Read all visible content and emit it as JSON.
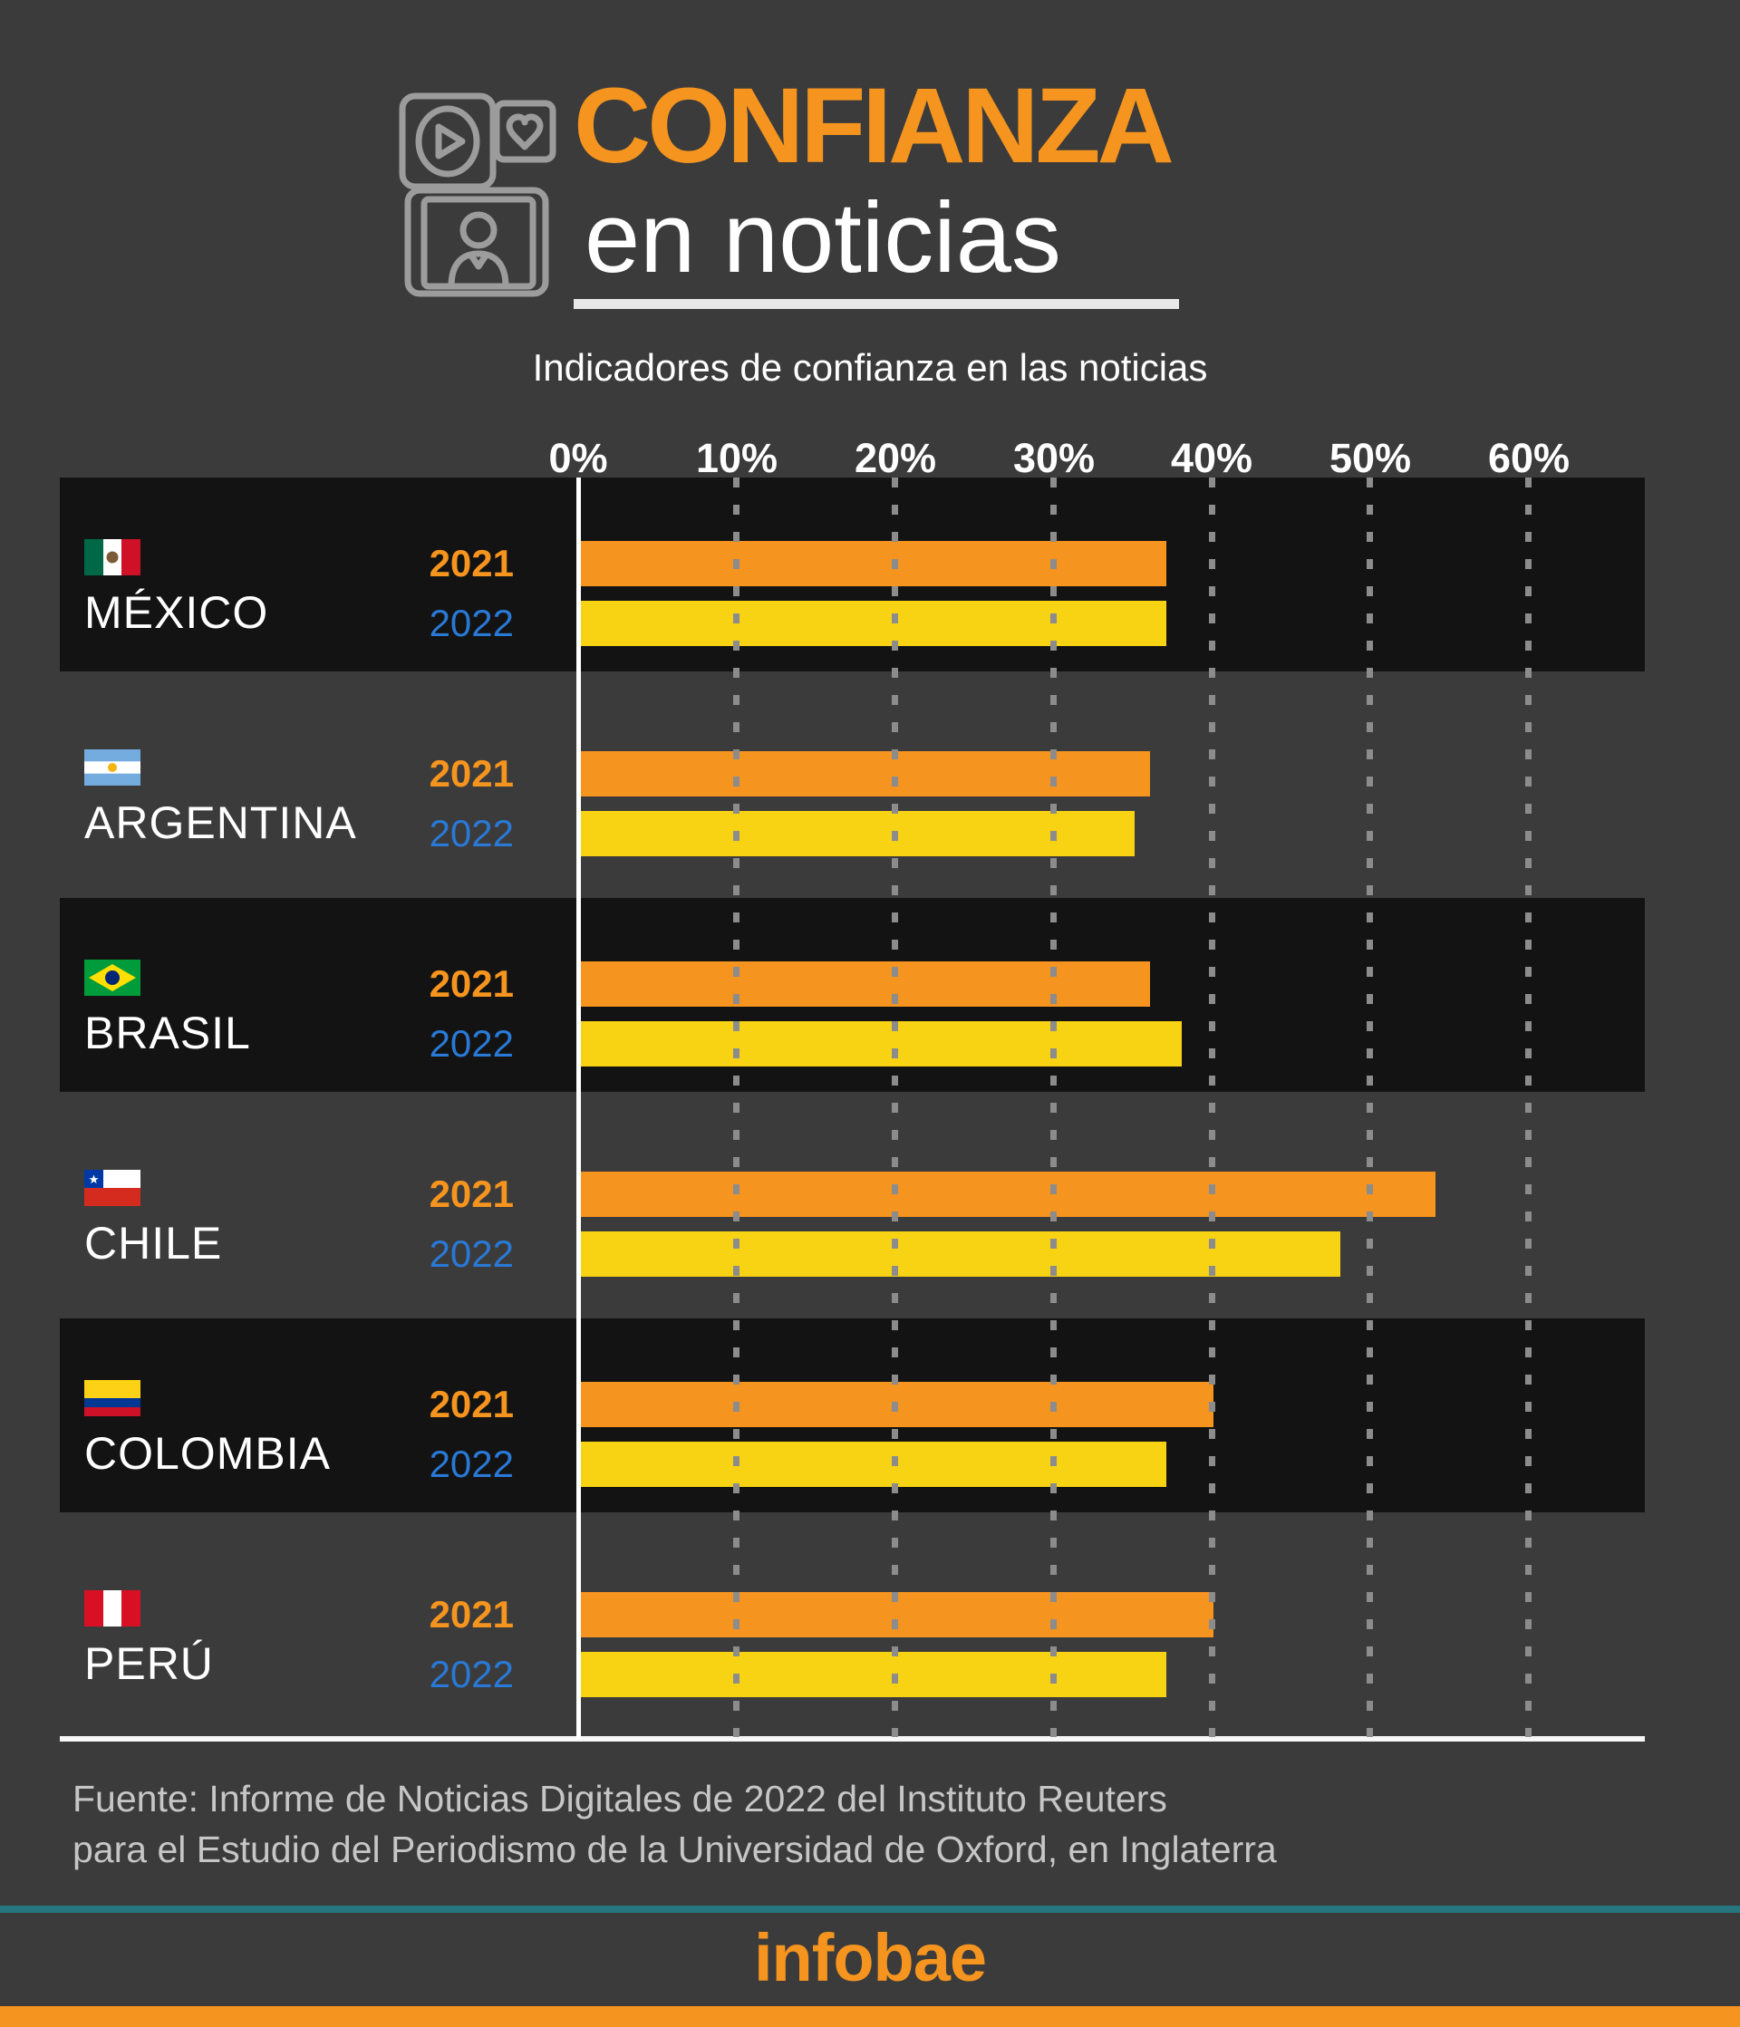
{
  "header": {
    "title_line1": "CONFIANZA",
    "title_line2": "en noticias",
    "subtitle": "Indicadores de confianza en las noticias",
    "icon": "media-news-icon"
  },
  "axis": {
    "ticks": [
      "0%",
      "10%",
      "20%",
      "30%",
      "40%",
      "50%",
      "60%"
    ]
  },
  "countries": [
    {
      "name": "MÉXICO",
      "flag": "mexico-flag",
      "y2021_label": "2021",
      "y2022_label": "2022",
      "pct_2021": 37,
      "pct_2022": 37
    },
    {
      "name": "ARGENTINA",
      "flag": "argentina-flag",
      "y2021_label": "2021",
      "y2022_label": "2022",
      "pct_2021": 36,
      "pct_2022": 35
    },
    {
      "name": "BRASIL",
      "flag": "brazil-flag",
      "y2021_label": "2021",
      "y2022_label": "2022",
      "pct_2021": 36,
      "pct_2022": 38
    },
    {
      "name": "CHILE",
      "flag": "chile-flag",
      "y2021_label": "2021",
      "y2022_label": "2022",
      "pct_2021": 54,
      "pct_2022": 48
    },
    {
      "name": "COLOMBIA",
      "flag": "colombia-flag",
      "y2021_label": "2021",
      "y2022_label": "2022",
      "pct_2021": 40,
      "pct_2022": 37
    },
    {
      "name": "PERÚ",
      "flag": "peru-flag",
      "y2021_label": "2021",
      "y2022_label": "2022",
      "pct_2021": 40,
      "pct_2022": 37
    }
  ],
  "footer": {
    "source_line1": "Fuente: Informe de Noticias Digitales de 2022 del Instituto Reuters",
    "source_line2": "para el Estudio del Periodismo de la Universidad de Oxford, en Inglaterra",
    "brand": "infobae"
  },
  "colors": {
    "background": "#3b3b3b",
    "row_block": "#131313",
    "bar_2021_orange": "#F5941E",
    "bar_2022_yellow": "#F8D314",
    "label_2022_blue": "#2979D6",
    "teal_divider": "#26767f",
    "title_orange": "#F5941E",
    "white": "#ffffff",
    "source_gray": "#c6c6c6"
  },
  "chart_data": {
    "type": "bar",
    "orientation": "horizontal",
    "title": "Indicadores de confianza en las noticias",
    "categories": [
      "México",
      "Argentina",
      "Brasil",
      "Chile",
      "Colombia",
      "Perú"
    ],
    "series": [
      {
        "name": "2021",
        "color": "#F5941E",
        "values": [
          37,
          36,
          36,
          54,
          40,
          40
        ]
      },
      {
        "name": "2022",
        "color": "#F8D314",
        "values": [
          37,
          35,
          38,
          48,
          37,
          37
        ]
      }
    ],
    "xlabel": "",
    "ylabel": "",
    "xlim": [
      0,
      60
    ],
    "x_tick_labels": [
      "0%",
      "10%",
      "20%",
      "30%",
      "40%",
      "50%",
      "60%"
    ],
    "grid": "vertical-dotted",
    "legend_position": "per-row-left"
  }
}
